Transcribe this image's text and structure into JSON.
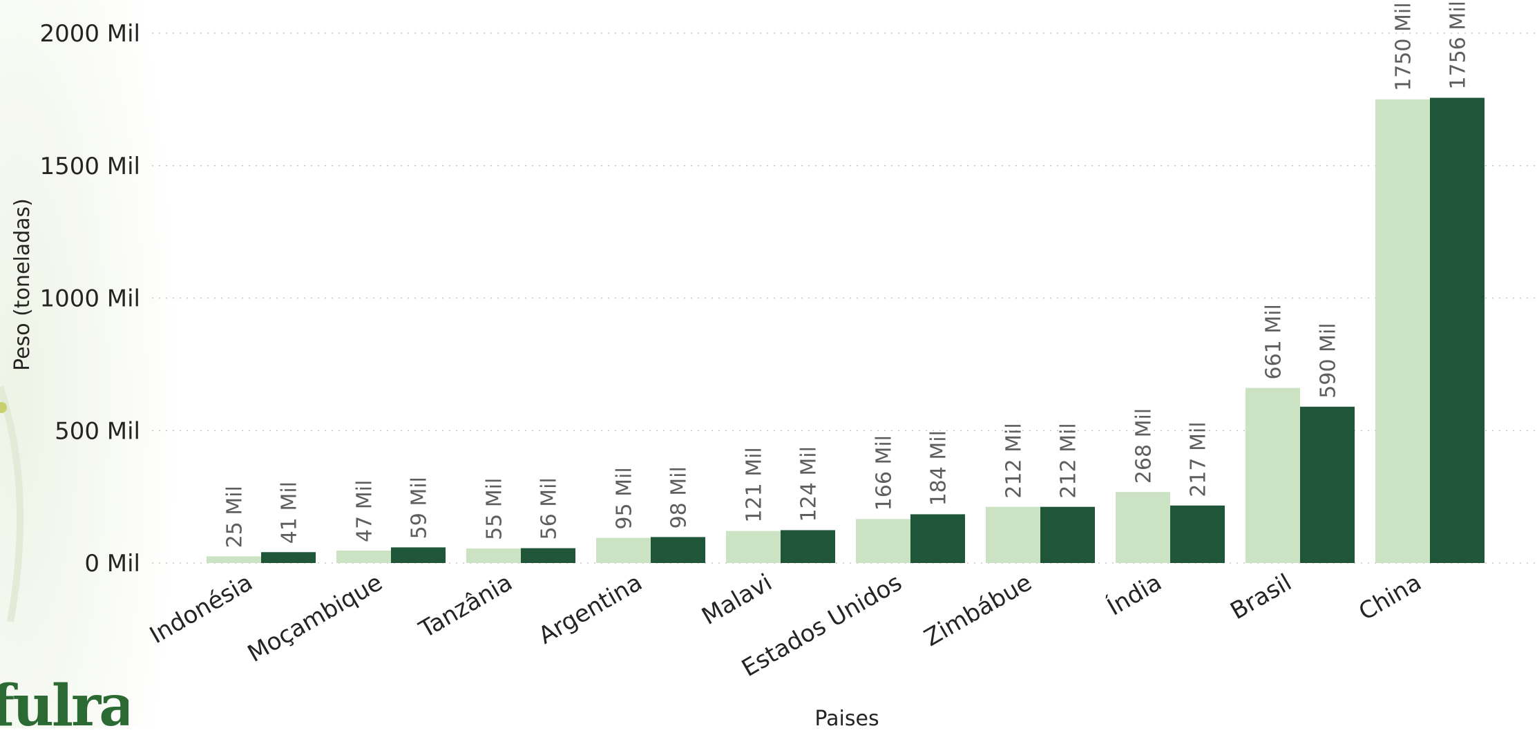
{
  "chart_data": {
    "type": "bar",
    "xlabel": "Paises",
    "ylabel": "Peso (toneladas)",
    "ylim": [
      0,
      2000000
    ],
    "yticks": [
      {
        "value": 0,
        "label": "0 Mil"
      },
      {
        "value": 500000,
        "label": "500 Mil"
      },
      {
        "value": 1000000,
        "label": "1000 Mil"
      },
      {
        "value": 1500000,
        "label": "1500 Mil"
      },
      {
        "value": 2000000,
        "label": "2000 Mil"
      }
    ],
    "grid": true,
    "categories": [
      "Indonésia",
      "Moçambique",
      "Tanzânia",
      "Argentina",
      "Malavi",
      "Estados Unidos",
      "Zimbábue",
      "Índia",
      "Brasil",
      "China"
    ],
    "series": [
      {
        "color": "#cbe2c3",
        "values": [
          25000,
          47000,
          55000,
          95000,
          121000,
          166000,
          212000,
          268000,
          661000,
          1750000
        ],
        "labels": [
          "25 Mil",
          "47 Mil",
          "55 Mil",
          "95 Mil",
          "121 Mil",
          "166 Mil",
          "212 Mil",
          "268 Mil",
          "661 Mil",
          "1750 Mil"
        ]
      },
      {
        "color": "#1f5539",
        "values": [
          41000,
          59000,
          56000,
          98000,
          124000,
          184000,
          212000,
          217000,
          590000,
          1756000
        ],
        "labels": [
          "41 Mil",
          "59 Mil",
          "56 Mil",
          "98 Mil",
          "124 Mil",
          "184 Mil",
          "212 Mil",
          "217 Mil",
          "590 Mil",
          "1756 Mil"
        ]
      }
    ]
  },
  "logo": {
    "text": "fulra",
    "color": "#2b6b33"
  }
}
